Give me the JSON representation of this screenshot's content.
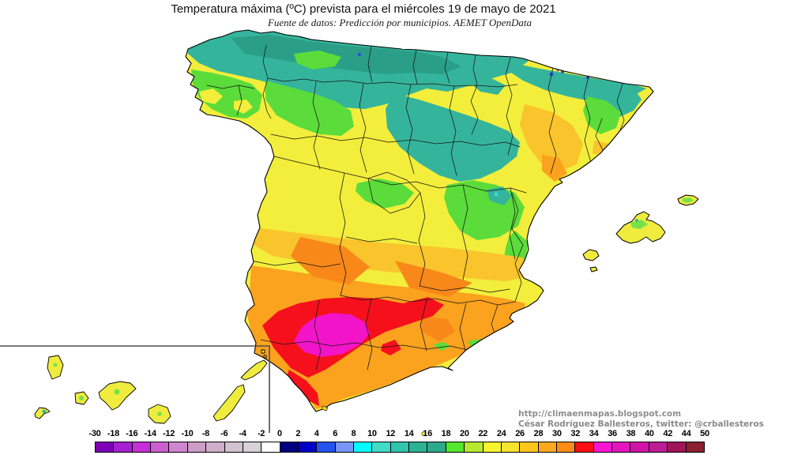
{
  "header": {
    "title": "Temperatura máxima (ºC) prevista para el miércoles 19 de mayo de 2021",
    "subtitle": "Fuente de datos: Predicción por municipios. AEMET OpenData"
  },
  "credits": {
    "url": "http://climaenmapas.blogspot.com",
    "author": "César Rodríguez Ballesteros, twitter: @crballesteros"
  },
  "map": {
    "label": "Mapa de temperatura máxima prevista para España (península, Baleares y Canarias)",
    "palette": {
      "base_yellow": "#F2EE3B",
      "teal": "#35B49C",
      "teal_dark": "#2B9E88",
      "green": "#5BDC3A",
      "gold": "#F9C42C",
      "orange": "#FBA21E",
      "orange_deep": "#F8881A",
      "red": "#F5101C",
      "magenta": "#F214C8",
      "cyan": "#38DCD4",
      "blue": "#2D4BE0",
      "violet": "#7C4FE0",
      "island_yellow": "#EFEC3E",
      "island_green": "#76E24A"
    }
  },
  "scale": {
    "ticks": [
      "-30",
      "-18",
      "-16",
      "-14",
      "-12",
      "-10",
      "-8",
      "-6",
      "-4",
      "-2",
      "0",
      "2",
      "4",
      "6",
      "8",
      "10",
      "12",
      "14",
      "16",
      "18",
      "20",
      "22",
      "24",
      "26",
      "28",
      "30",
      "32",
      "34",
      "36",
      "38",
      "40",
      "42",
      "44",
      "50"
    ],
    "colors": [
      "#7D00B4",
      "#A61FD0",
      "#C72FD8",
      "#CB5FD2",
      "#CE86CE",
      "#CC9DC6",
      "#CDAFCA",
      "#D2C1CF",
      "#D8D2D7",
      "#FFFFFF",
      "#000080",
      "#0000C8",
      "#2353F0",
      "#7A94F8",
      "#00FFFF",
      "#40DCC8",
      "#2EC6AE",
      "#2EB295",
      "#2FA98B",
      "#57E62E",
      "#B8E830",
      "#F6F62E",
      "#F6E42E",
      "#FFC61E",
      "#FFA81E",
      "#FF8C14",
      "#FA0F14",
      "#FA14D2",
      "#E415BE",
      "#D213A8",
      "#BC1C96",
      "#A01458",
      "#8C2030"
    ]
  }
}
